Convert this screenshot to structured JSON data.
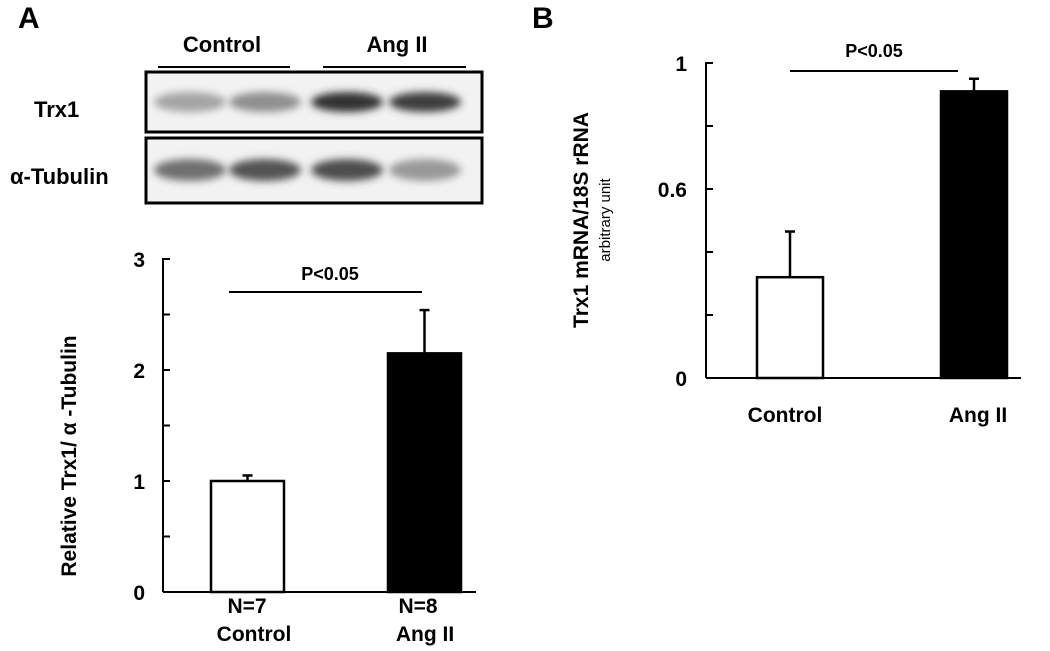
{
  "panel_a": {
    "letter": "A",
    "blot": {
      "groups": [
        "Control",
        "Ang II"
      ],
      "rows": [
        {
          "label": "Trx1",
          "band_intensity": [
            0.3,
            0.4,
            0.85,
            0.8
          ]
        },
        {
          "label": "α-Tubulin",
          "band_intensity": [
            0.55,
            0.7,
            0.72,
            0.35
          ]
        }
      ]
    }
  },
  "panel_b": {
    "letter": "B"
  },
  "chart_data": [
    {
      "type": "bar",
      "panel": "A",
      "categories": [
        "Control",
        "Ang II"
      ],
      "n_labels": [
        "N=7",
        "N=8"
      ],
      "values": [
        1.0,
        2.15
      ],
      "errors": [
        0.05,
        0.39
      ],
      "bar_colors": [
        "#ffffff",
        "#000000"
      ],
      "ylabel": "Relative Trx1/ α -Tubulin",
      "ylim": [
        0,
        3
      ],
      "yticks": [
        0,
        1,
        2,
        3
      ],
      "significance": "P<0.05"
    },
    {
      "type": "bar",
      "panel": "B",
      "categories": [
        "Control",
        "Ang II"
      ],
      "values": [
        0.32,
        0.91
      ],
      "errors": [
        0.145,
        0.04
      ],
      "bar_colors": [
        "#ffffff",
        "#000000"
      ],
      "ylabel": "Trx1 mRNA/18S rRNA",
      "ylabel_sub": "arbitrary unit",
      "ylim": [
        0,
        1
      ],
      "yticks": [
        0,
        0.6,
        1
      ],
      "significance": "P<0.05"
    }
  ]
}
